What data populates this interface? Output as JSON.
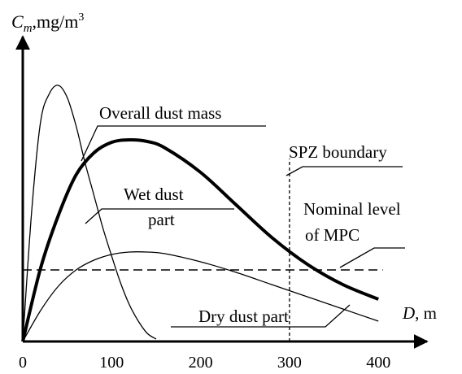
{
  "chart_data": {
    "type": "line",
    "title": "",
    "xlabel": {
      "var": "D",
      "unit": ", m"
    },
    "ylabel": {
      "var": "C",
      "sub": "m",
      "unit": ",mg/m",
      "sup": "3"
    },
    "xlim": [
      0,
      420
    ],
    "x_ticks": [
      "0",
      "100",
      "200",
      "300",
      "400"
    ],
    "x_tick_values": [
      0,
      100,
      200,
      300,
      400
    ],
    "grid": false,
    "series": [
      {
        "name": "Overall dust mass",
        "style": "thick",
        "x": [
          0,
          20,
          40,
          60,
          80,
          100,
          120,
          140,
          160,
          200,
          240,
          280,
          320,
          360,
          400
        ],
        "y": [
          0,
          90,
          155,
          205,
          232,
          245,
          248,
          246,
          238,
          208,
          168,
          128,
          95,
          70,
          52
        ]
      },
      {
        "name": "Wet dust part",
        "style": "thin",
        "x": [
          0,
          10,
          20,
          30,
          40,
          50,
          60,
          70,
          80,
          90,
          100,
          110,
          120,
          130,
          140,
          150
        ],
        "y": [
          0,
          160,
          270,
          305,
          315,
          300,
          265,
          220,
          180,
          140,
          105,
          72,
          45,
          25,
          10,
          3
        ]
      },
      {
        "name": "Dry dust part",
        "style": "thin",
        "x": [
          0,
          20,
          40,
          60,
          80,
          100,
          120,
          140,
          160,
          200,
          240,
          280,
          320,
          360,
          400
        ],
        "y": [
          0,
          38,
          68,
          88,
          100,
          107,
          110,
          110,
          108,
          98,
          85,
          70,
          55,
          40,
          25
        ]
      },
      {
        "name": "Nominal level of MPC",
        "style": "dashed",
        "x": [
          0,
          405
        ],
        "y": [
          88,
          88
        ]
      },
      {
        "name": "SPZ boundary",
        "style": "dotted-vertical",
        "x": [
          300,
          300
        ],
        "y": [
          0,
          225
        ]
      }
    ],
    "annotations": {
      "overall": "Overall dust mass",
      "spz": "SPZ boundary",
      "wet_1": "Wet dust",
      "wet_2": "part",
      "mpc_1": "Nominal level",
      "mpc_2": "of MPC",
      "dry": "Dry dust part"
    },
    "colors": {
      "line": "#000000",
      "background": "#ffffff"
    }
  }
}
